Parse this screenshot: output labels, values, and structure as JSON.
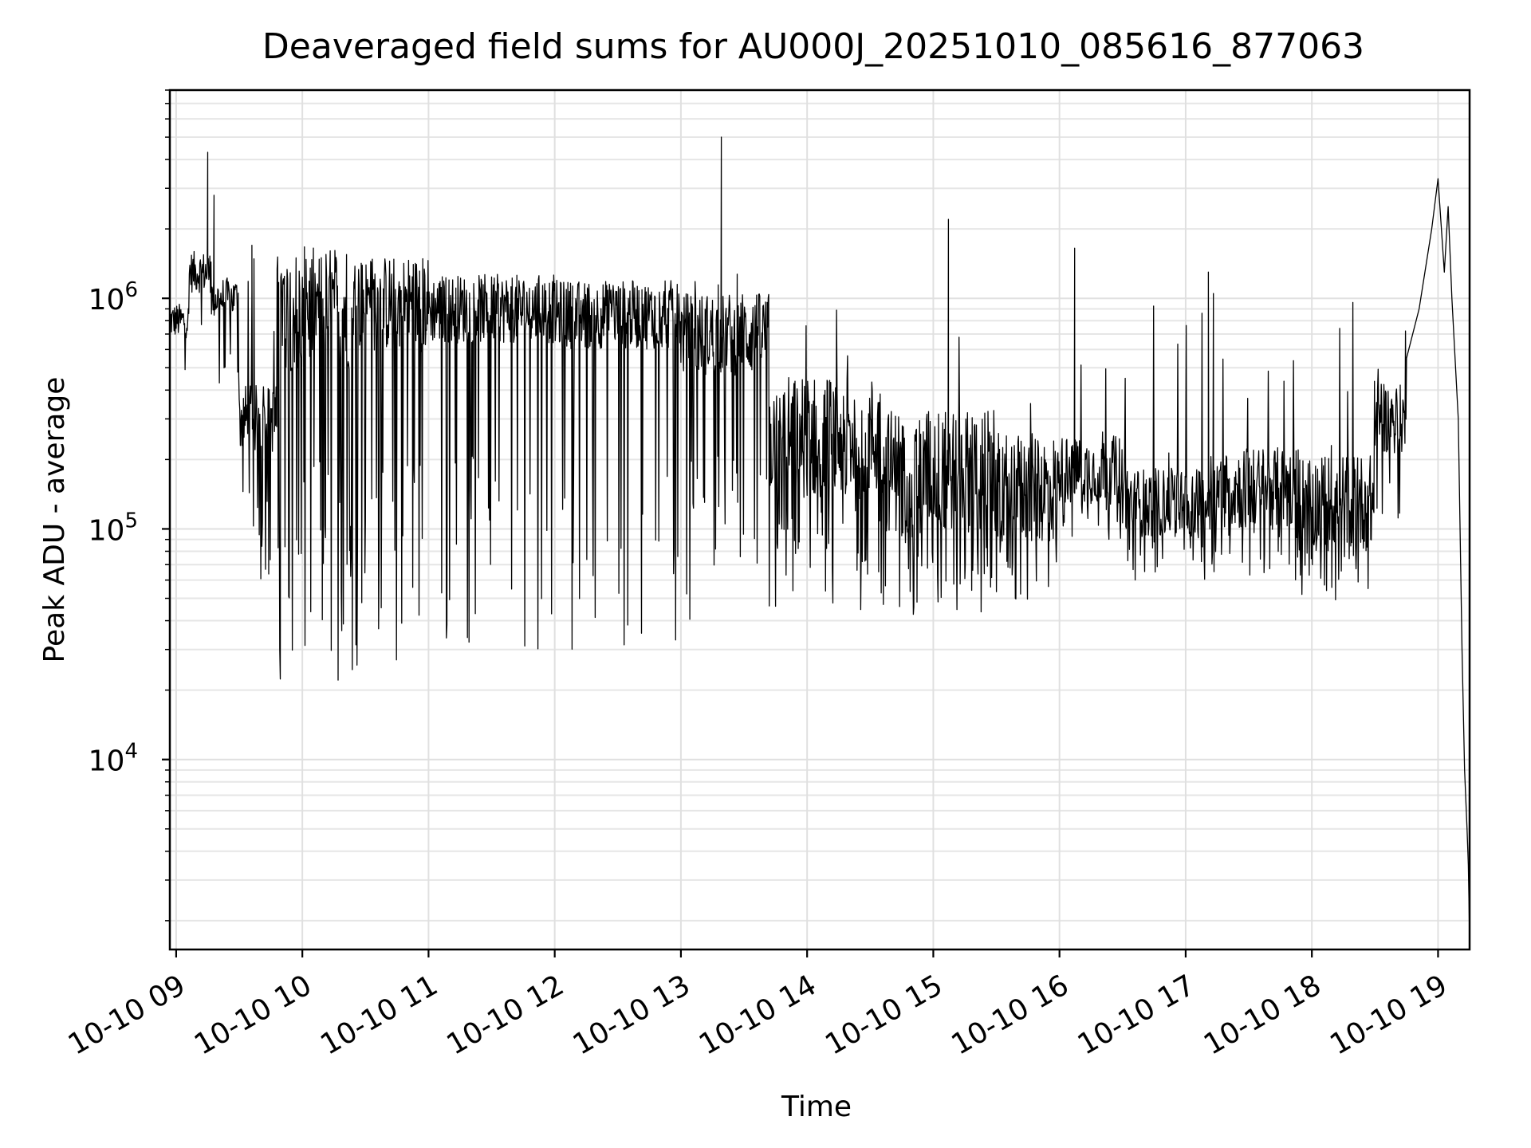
{
  "chart_data": {
    "type": "line",
    "title": "Deaveraged field sums for AU000J_20251010_085616_877063",
    "xlabel": "Time",
    "ylabel": "Peak ADU - average",
    "yscale": "log",
    "ylim": [
      1500,
      8000000
    ],
    "xlim_hours": [
      8.95,
      19.25
    ],
    "grid": true,
    "x_ticks": [
      {
        "hour": 9,
        "label": "10-10 09"
      },
      {
        "hour": 10,
        "label": "10-10 10"
      },
      {
        "hour": 11,
        "label": "10-10 11"
      },
      {
        "hour": 12,
        "label": "10-10 12"
      },
      {
        "hour": 13,
        "label": "10-10 13"
      },
      {
        "hour": 14,
        "label": "10-10 14"
      },
      {
        "hour": 15,
        "label": "10-10 15"
      },
      {
        "hour": 16,
        "label": "10-10 16"
      },
      {
        "hour": 17,
        "label": "10-10 17"
      },
      {
        "hour": 18,
        "label": "10-10 18"
      },
      {
        "hour": 19,
        "label": "10-10 19"
      }
    ],
    "y_ticks": [
      {
        "value": 10000,
        "base": "10",
        "exp": "4"
      },
      {
        "value": 100000,
        "base": "10",
        "exp": "5"
      },
      {
        "value": 1000000,
        "base": "10",
        "exp": "6"
      }
    ],
    "series": [
      {
        "name": "Peak ADU - average",
        "color": "#000000",
        "segments": [
          {
            "start": 8.95,
            "end": 9.1,
            "base": 800000,
            "low": 450000,
            "spike_prob": 0.02,
            "spike_max": 1600000,
            "jitter": 0.25
          },
          {
            "start": 9.1,
            "end": 9.28,
            "base": 1300000,
            "low": 700000,
            "spike_prob": 0.05,
            "spike_max": 2800000,
            "jitter": 0.3
          },
          {
            "start": 9.28,
            "end": 9.5,
            "base": 1000000,
            "low": 400000,
            "spike_prob": 0.05,
            "spike_max": 1700000,
            "jitter": 0.3
          },
          {
            "start": 9.5,
            "end": 9.8,
            "base": 300000,
            "low": 50000,
            "spike_prob": 0.08,
            "spike_max": 1500000,
            "jitter": 0.5
          },
          {
            "start": 9.8,
            "end": 10.4,
            "base": 900000,
            "low": 22000,
            "spike_prob": 0.03,
            "spike_max": 1300000,
            "jitter": 0.9
          },
          {
            "start": 10.4,
            "end": 11.0,
            "base": 950000,
            "low": 25000,
            "spike_prob": 0.03,
            "spike_max": 1300000,
            "jitter": 0.7
          },
          {
            "start": 11.0,
            "end": 12.0,
            "base": 900000,
            "low": 30000,
            "spike_prob": 0.02,
            "spike_max": 1200000,
            "jitter": 0.5
          },
          {
            "start": 12.0,
            "end": 13.0,
            "base": 850000,
            "low": 30000,
            "spike_prob": 0.02,
            "spike_max": 1250000,
            "jitter": 0.5
          },
          {
            "start": 13.0,
            "end": 13.7,
            "base": 700000,
            "low": 35000,
            "spike_prob": 0.03,
            "spike_max": 1300000,
            "jitter": 0.6
          },
          {
            "start": 13.7,
            "end": 14.6,
            "base": 250000,
            "low": 42000,
            "spike_prob": 0.05,
            "spike_max": 900000,
            "jitter": 0.9
          },
          {
            "start": 14.6,
            "end": 15.5,
            "base": 180000,
            "low": 42000,
            "spike_prob": 0.05,
            "spike_max": 800000,
            "jitter": 0.9
          },
          {
            "start": 15.5,
            "end": 16.0,
            "base": 150000,
            "low": 48000,
            "spike_prob": 0.05,
            "spike_max": 750000,
            "jitter": 0.8
          },
          {
            "start": 16.0,
            "end": 16.5,
            "base": 180000,
            "low": 90000,
            "spike_prob": 0.05,
            "spike_max": 1000000,
            "jitter": 0.5
          },
          {
            "start": 16.5,
            "end": 17.2,
            "base": 130000,
            "low": 60000,
            "spike_prob": 0.04,
            "spike_max": 1100000,
            "jitter": 0.5
          },
          {
            "start": 17.2,
            "end": 17.9,
            "base": 150000,
            "low": 60000,
            "spike_prob": 0.05,
            "spike_max": 600000,
            "jitter": 0.6
          },
          {
            "start": 17.9,
            "end": 18.5,
            "base": 130000,
            "low": 48000,
            "spike_prob": 0.06,
            "spike_max": 1100000,
            "jitter": 0.7
          },
          {
            "start": 18.5,
            "end": 18.75,
            "base": 300000,
            "low": 80000,
            "spike_prob": 0.06,
            "spike_max": 800000,
            "jitter": 0.5
          }
        ],
        "points": [
          {
            "h": 9.25,
            "y": 4300000
          },
          {
            "h": 9.3,
            "y": 2800000
          },
          {
            "h": 9.6,
            "y": 1700000
          },
          {
            "h": 13.32,
            "y": 5000000
          },
          {
            "h": 15.12,
            "y": 2200000
          },
          {
            "h": 16.12,
            "y": 1650000
          },
          {
            "h": 17.18,
            "y": 1300000
          },
          {
            "h": 17.22,
            "y": 1050000
          },
          {
            "h": 18.75,
            "y": 550000
          },
          {
            "h": 18.85,
            "y": 900000
          },
          {
            "h": 18.95,
            "y": 2000000
          },
          {
            "h": 19.0,
            "y": 3300000
          },
          {
            "h": 19.05,
            "y": 1300000
          },
          {
            "h": 19.08,
            "y": 2500000
          },
          {
            "h": 19.11,
            "y": 1000000
          },
          {
            "h": 19.16,
            "y": 300000
          },
          {
            "h": 19.19,
            "y": 30000
          },
          {
            "h": 19.21,
            "y": 9000
          },
          {
            "h": 19.23,
            "y": 5000
          },
          {
            "h": 19.24,
            "y": 3500
          },
          {
            "h": 19.25,
            "y": 1700
          }
        ]
      }
    ]
  }
}
